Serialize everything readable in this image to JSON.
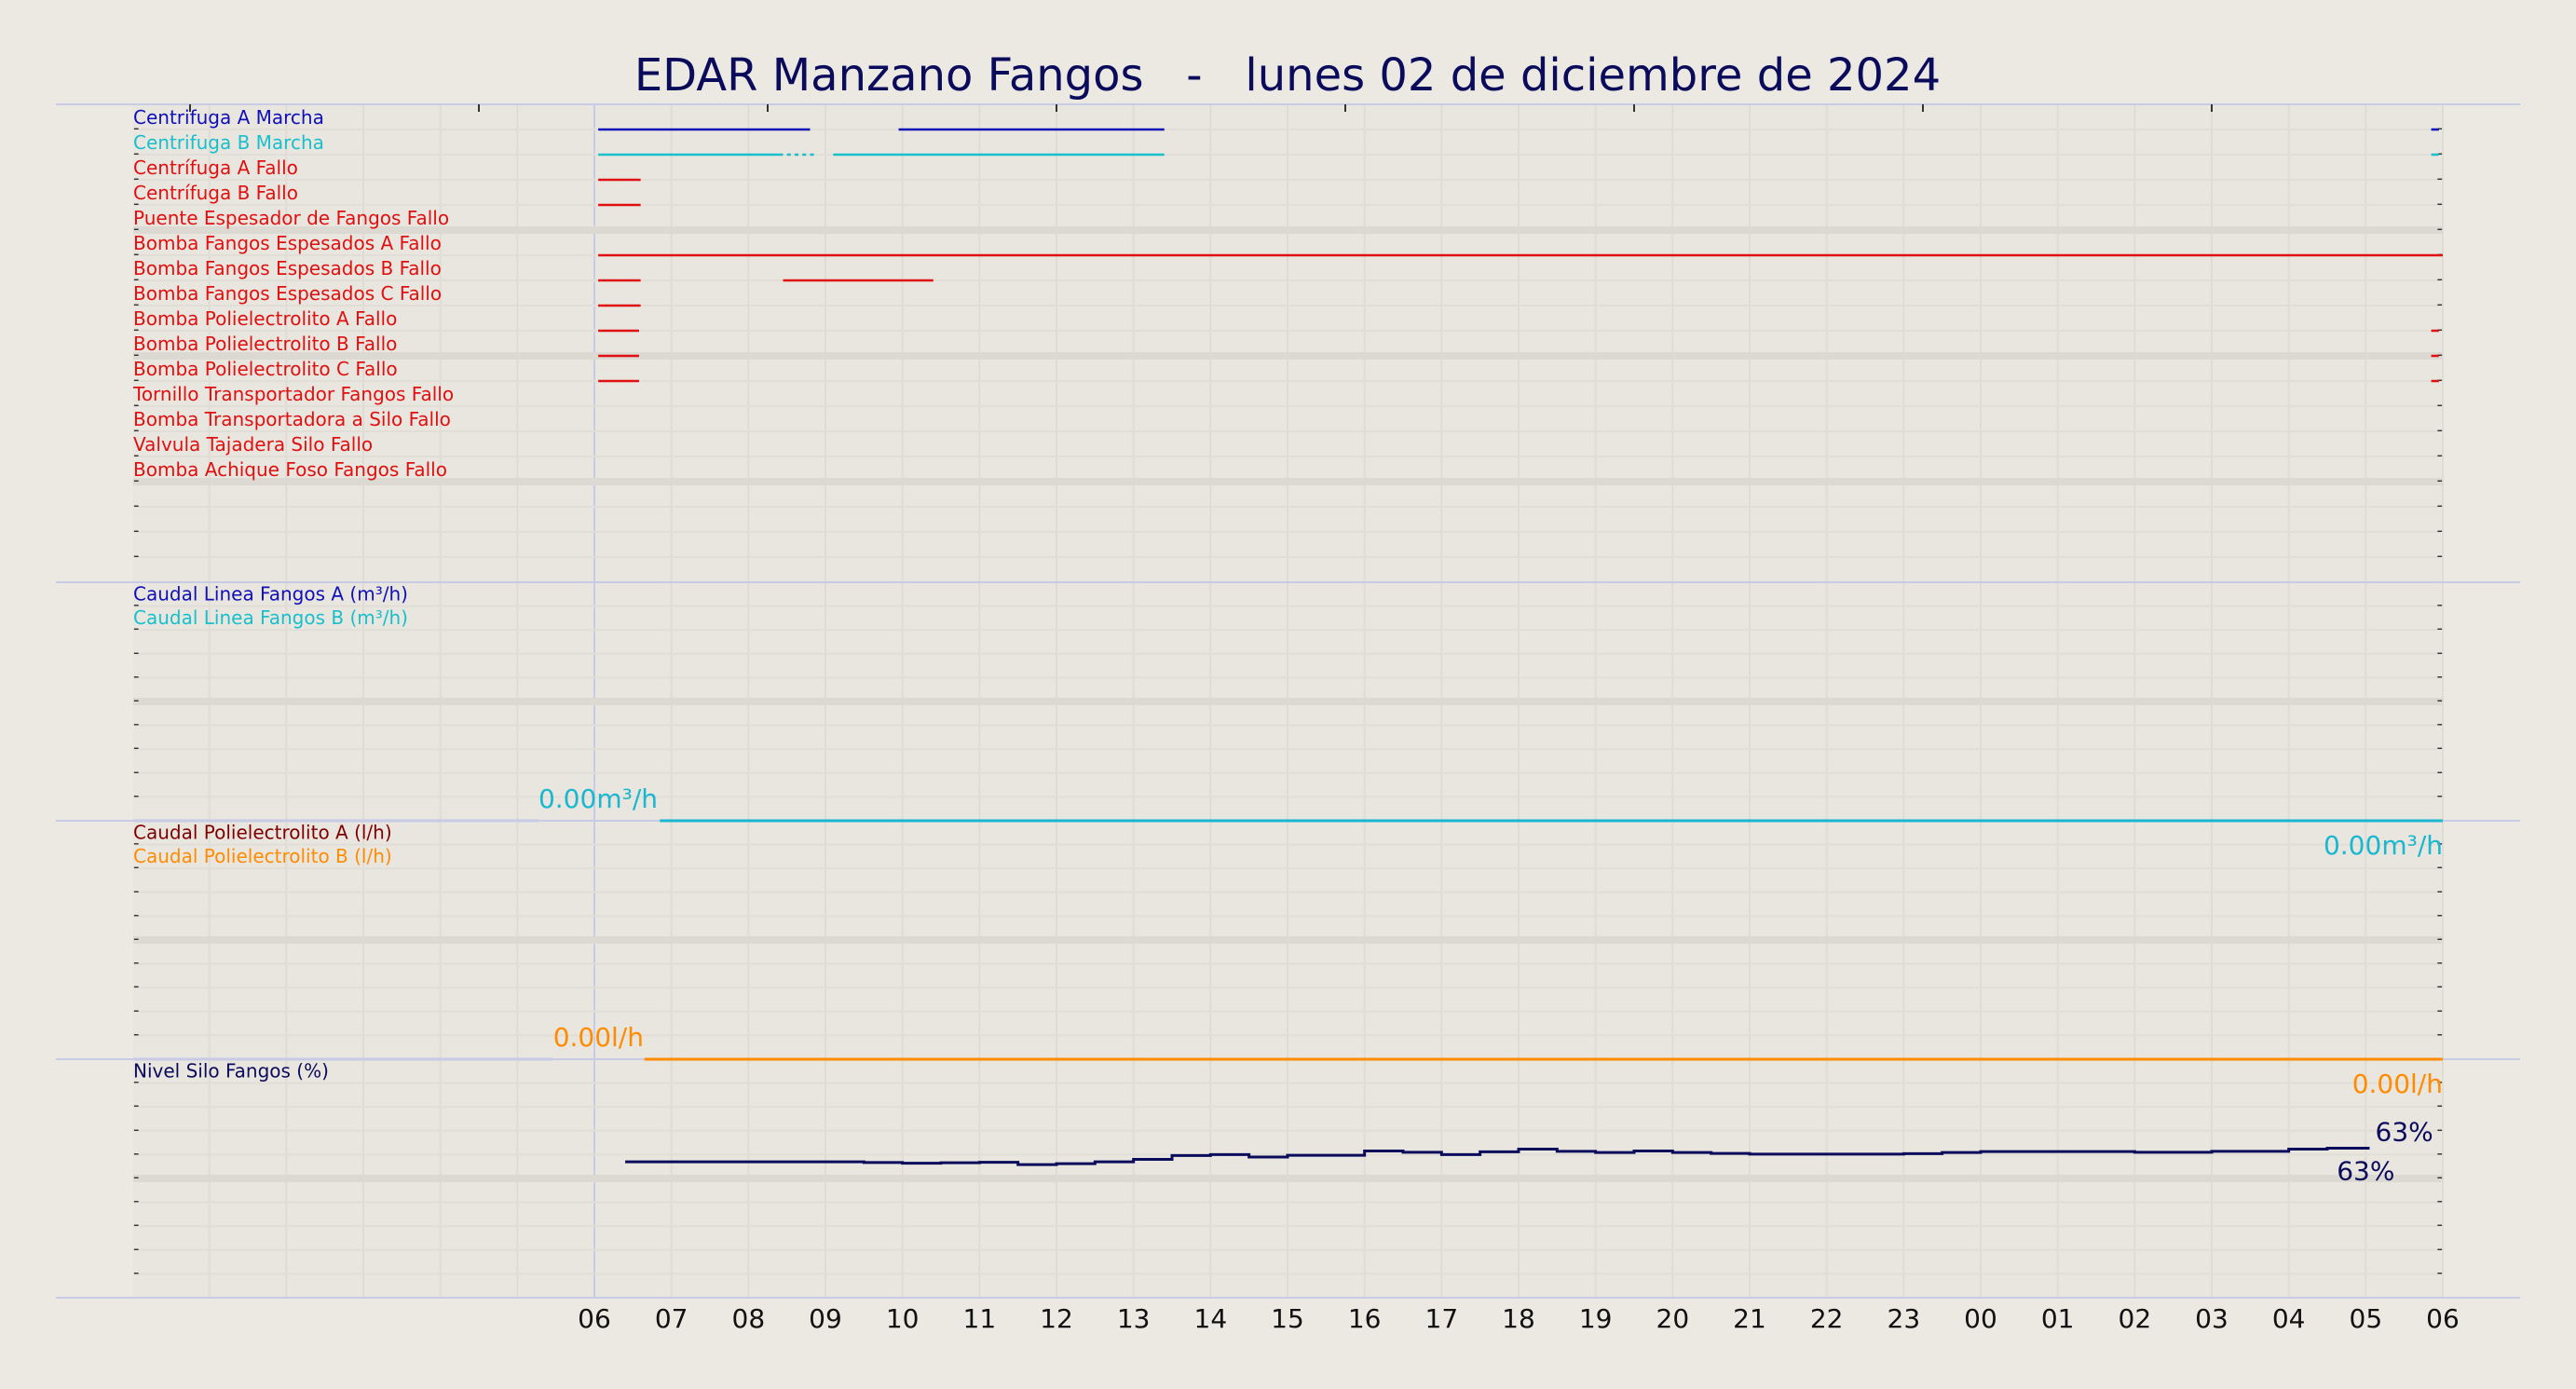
{
  "chart_data": {
    "type": "line",
    "title": "EDAR Manzano Fangos   -   lunes 02 de diciembre de 2024",
    "x_ticks": [
      "06",
      "07",
      "08",
      "09",
      "10",
      "11",
      "12",
      "13",
      "14",
      "15",
      "16",
      "17",
      "18",
      "19",
      "20",
      "21",
      "22",
      "23",
      "00",
      "01",
      "02",
      "03",
      "04",
      "05",
      "06"
    ],
    "x_domain_hours": [
      6,
      30
    ],
    "grid": true,
    "colors": {
      "title": "#0b0b5c",
      "marcha_a": "#1010b8",
      "marcha_b": "#18c0cc",
      "fallo": "#e01010",
      "caudal_b": "#18b8d0",
      "poli_a": "#800000",
      "poli_b": "#ff8c00",
      "nivel": "#0b0b5c"
    },
    "panels": [
      {
        "id": "estados",
        "rows": 19,
        "signals": [
          {
            "name": "Centrifuga A Marcha",
            "color": "#1010b8",
            "segments": [
              [
                6.05,
                8.8
              ],
              [
                9.95,
                13.4
              ],
              [
                29.85,
                29.95
              ]
            ]
          },
          {
            "name": "Centrifuga B Marcha",
            "color": "#18c0cc",
            "segments": [
              [
                6.05,
                8.45
              ],
              [
                8.5,
                8.55
              ],
              [
                8.6,
                8.65
              ],
              [
                8.7,
                8.75
              ],
              [
                8.8,
                8.85
              ],
              [
                9.1,
                13.4
              ],
              [
                29.85,
                29.95
              ]
            ]
          },
          {
            "name": "Centrífuga A Fallo",
            "color": "#e01010",
            "segments": [
              [
                6.05,
                6.6
              ]
            ]
          },
          {
            "name": "Centrífuga B Fallo",
            "color": "#e01010",
            "segments": [
              [
                6.05,
                6.6
              ]
            ]
          },
          {
            "name": "Puente Espesador de Fangos Fallo",
            "color": "#e01010",
            "segments": []
          },
          {
            "name": "Bomba Fangos Espesados A Fallo",
            "color": "#e01010",
            "segments": [
              [
                6.05,
                30
              ]
            ]
          },
          {
            "name": "Bomba Fangos Espesados B Fallo",
            "color": "#e01010",
            "segments": [
              [
                6.05,
                6.6
              ],
              [
                8.45,
                10.4
              ]
            ]
          },
          {
            "name": "Bomba Fangos Espesados C Fallo",
            "color": "#e01010",
            "segments": [
              [
                6.05,
                6.6
              ]
            ]
          },
          {
            "name": "Bomba Polielectrolito A Fallo",
            "color": "#e01010",
            "segments": [
              [
                6.05,
                6.58
              ],
              [
                29.85,
                29.95
              ]
            ]
          },
          {
            "name": "Bomba Polielectrolito B Fallo",
            "color": "#e01010",
            "segments": [
              [
                6.05,
                6.58
              ],
              [
                29.85,
                29.95
              ]
            ]
          },
          {
            "name": "Bomba Polielectrolito C Fallo",
            "color": "#e01010",
            "segments": [
              [
                6.05,
                6.58
              ],
              [
                29.85,
                29.95
              ]
            ]
          },
          {
            "name": "Tornillo Transportador Fangos Fallo",
            "color": "#e01010",
            "segments": []
          },
          {
            "name": "Bomba Transportadora a Silo Fallo",
            "color": "#e01010",
            "segments": []
          },
          {
            "name": "Valvula Tajadera Silo Fallo",
            "color": "#e01010",
            "segments": []
          },
          {
            "name": "Bomba Achique Foso Fangos Fallo",
            "color": "#e01010",
            "segments": []
          }
        ]
      },
      {
        "id": "caudal_fangos",
        "rows": 10,
        "legend": [
          {
            "name": "Caudal Linea Fangos A (m³/h)",
            "color": "#1010b8"
          },
          {
            "name": "Caudal Linea Fangos B (m³/h)",
            "color": "#18c0cc"
          }
        ],
        "series": [
          {
            "name": "Caudal Linea Fangos B (m³/h)",
            "color": "#18b8d0",
            "x": [
              6.85,
              30
            ],
            "y": [
              0,
              0
            ]
          }
        ],
        "pre_line": [
          0,
          5.35
        ],
        "label_left": "0.00m³/h",
        "label_right": "0.00m³/h",
        "label_color": "#18b8d0"
      },
      {
        "id": "caudal_poli",
        "rows": 10,
        "legend": [
          {
            "name": "Caudal Polielectrolito A (l/h)",
            "color": "#800000"
          },
          {
            "name": "Caudal Polielectrolito B (l/h)",
            "color": "#ff8c00"
          }
        ],
        "series": [
          {
            "name": "Caudal Polielectrolito B (l/h)",
            "color": "#ff8c00",
            "x": [
              6.65,
              30
            ],
            "y": [
              0,
              0
            ]
          }
        ],
        "pre_line": [
          0,
          5.5
        ],
        "label_left": "0.00l/h",
        "label_right": "0.00l/h",
        "label_color": "#ff8c00"
      },
      {
        "id": "nivel",
        "rows": 10,
        "ylim": [
          0,
          100
        ],
        "legend": [
          {
            "name": "Nivel Silo Fangos (%)",
            "color": "#0b0b5c"
          }
        ],
        "series": [
          {
            "name": "Nivel Silo Fangos (%)",
            "color": "#0b0b5c",
            "step": true,
            "x": [
              6.4,
              9.5,
              10.0,
              10.5,
              11.0,
              11.5,
              12.0,
              12.5,
              13.0,
              13.5,
              14.0,
              14.5,
              15.0,
              16.0,
              16.5,
              17.0,
              17.5,
              18.0,
              18.5,
              19.0,
              19.5,
              20.0,
              20.5,
              21.0,
              23.0,
              23.5,
              24.0,
              26.0,
              27.0,
              28.0,
              28.5,
              29.05
            ],
            "y": [
              57,
              56.7,
              56.4,
              56.6,
              56.8,
              55.8,
              56.2,
              57,
              58,
              59.6,
              60,
              59,
              59.7,
              61.5,
              61,
              60,
              61.2,
              62.3,
              61.4,
              60.9,
              61.5,
              60.9,
              60.5,
              60.2,
              60.4,
              60.9,
              61.3,
              61,
              61.4,
              62.3,
              62.7,
              62.7
            ]
          }
        ],
        "label_top": "63%",
        "label_bottom": "63%",
        "label_color": "#0b0b5c"
      }
    ]
  }
}
